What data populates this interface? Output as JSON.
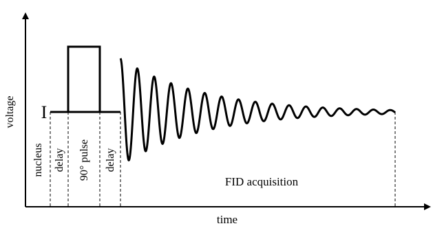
{
  "diagram": {
    "axes": {
      "x_label": "time",
      "y_label": "voltage"
    },
    "nucleus_symbol": "I",
    "segments": {
      "nucleus": "nucleus",
      "delay_1": "delay",
      "pulse": "90° pulse",
      "delay_2": "delay",
      "acquisition": "FID acquisition"
    },
    "color": "#000000"
  }
}
